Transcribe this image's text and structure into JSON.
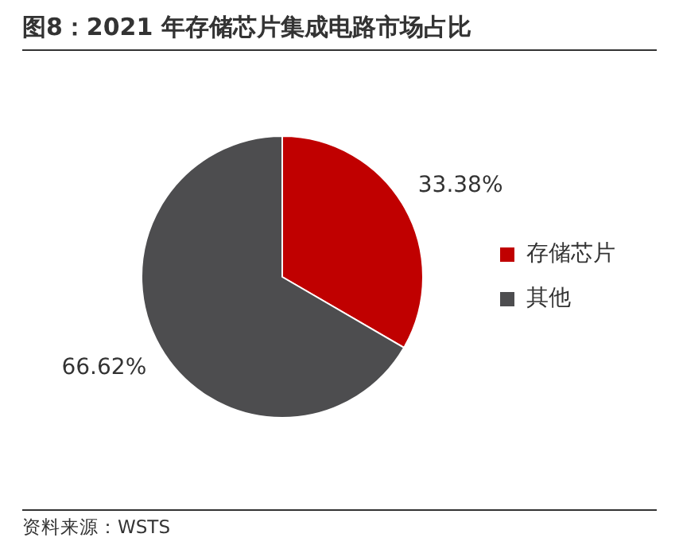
{
  "chart_data": {
    "type": "pie",
    "title": "图8：2021 年存储芯片集成电路市场占比",
    "categories": [
      "存储芯片",
      "其他"
    ],
    "values": [
      33.38,
      66.62
    ],
    "colors": [
      "#c00000",
      "#4d4d4f"
    ],
    "value_labels": [
      "33.38%",
      "66.62%"
    ],
    "legend": "right",
    "annotations": [
      "资料来源：WSTS"
    ]
  }
}
